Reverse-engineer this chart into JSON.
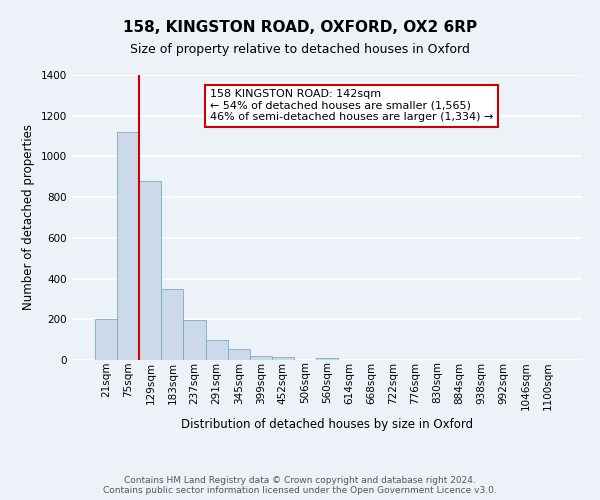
{
  "title": "158, KINGSTON ROAD, OXFORD, OX2 6RP",
  "subtitle": "Size of property relative to detached houses in Oxford",
  "xlabel": "Distribution of detached houses by size in Oxford",
  "ylabel": "Number of detached properties",
  "bar_labels": [
    "21sqm",
    "75sqm",
    "129sqm",
    "183sqm",
    "237sqm",
    "291sqm",
    "345sqm",
    "399sqm",
    "452sqm",
    "506sqm",
    "560sqm",
    "614sqm",
    "668sqm",
    "722sqm",
    "776sqm",
    "830sqm",
    "884sqm",
    "938sqm",
    "992sqm",
    "1046sqm",
    "1100sqm"
  ],
  "bar_heights": [
    200,
    1120,
    880,
    350,
    195,
    100,
    55,
    22,
    15,
    0,
    12,
    0,
    0,
    0,
    0,
    0,
    0,
    0,
    0,
    0,
    0
  ],
  "bar_color": "#ccd9e8",
  "bar_edge_color": "#7aaac8",
  "vline_x": 1.5,
  "vline_color": "#cc0000",
  "annotation_text": "158 KINGSTON ROAD: 142sqm\n← 54% of detached houses are smaller (1,565)\n46% of semi-detached houses are larger (1,334) →",
  "annotation_box_color": "#ffffff",
  "annotation_box_edge": "#cc0000",
  "ylim": [
    0,
    1400
  ],
  "yticks": [
    0,
    200,
    400,
    600,
    800,
    1000,
    1200,
    1400
  ],
  "footer_line1": "Contains HM Land Registry data © Crown copyright and database right 2024.",
  "footer_line2": "Contains public sector information licensed under the Open Government Licence v3.0.",
  "bg_color": "#edf2f8",
  "plot_bg_color": "#edf2f8",
  "grid_color": "#ffffff",
  "title_fontsize": 11,
  "subtitle_fontsize": 9,
  "axis_label_fontsize": 8.5,
  "tick_fontsize": 7.5,
  "annotation_fontsize": 8,
  "footer_fontsize": 6.5
}
